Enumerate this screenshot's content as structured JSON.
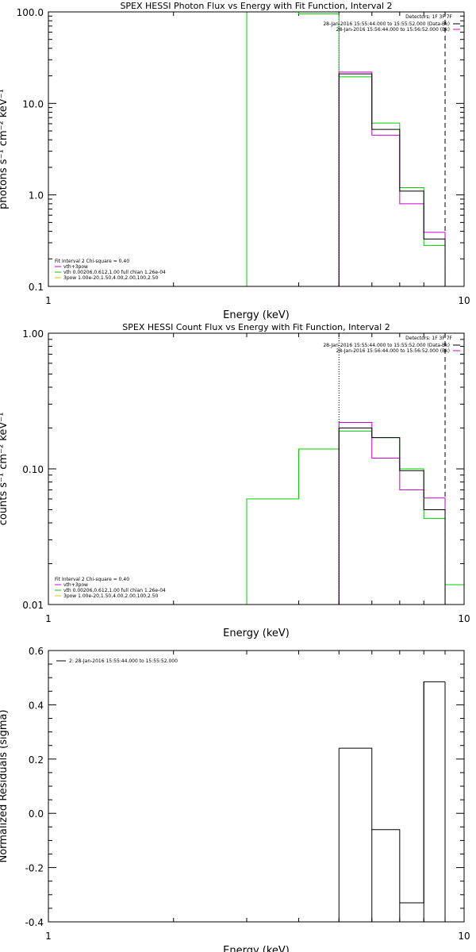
{
  "chart_data": [
    {
      "type": "line",
      "title": "SPEX HESSI Photon Flux vs Energy with Fit Function, Interval 2",
      "xlabel": "Energy (keV)",
      "ylabel": "photons s⁻¹ cm⁻² keV⁻¹",
      "xscale": "log",
      "yscale": "log",
      "xlim": [
        1,
        10
      ],
      "ylim": [
        0.1,
        100
      ],
      "x_ticks": [
        {
          "v": 1,
          "label": "1"
        },
        {
          "v": 10,
          "label": "10"
        }
      ],
      "y_ticks": [
        {
          "v": 0.1,
          "label": "0.1"
        },
        {
          "v": 1,
          "label": "1.0"
        },
        {
          "v": 10,
          "label": "10.0"
        },
        {
          "v": 100,
          "label": "100.0"
        }
      ],
      "detectors_label": "Detectors: 1F 3F 7F",
      "time_lines": [
        {
          "text": "28-Jan-2016 15:55:44.000 to 15:55:52.000 (Data-Bk)",
          "color": "#000000"
        },
        {
          "text": "28-Jan-2016 15:56:44.000 to 15:56:52.000 (Bk)",
          "color": "#cc00cc"
        }
      ],
      "fit_info": {
        "header": "Fit Interval 2   Chi-square = 0.40",
        "lines": [
          {
            "text": "vth+3pow",
            "color": "#cc00cc"
          },
          {
            "text": "vth 0.00206,0.612,1.00   full chian 1.26e-04",
            "color": "#00cc00"
          },
          {
            "text": "3pow 1.00e-20,1.50,4.00,2.00,100,2.50",
            "color": "#c8c800"
          }
        ]
      },
      "vlines": [
        {
          "x": 5.0,
          "style": "dotted"
        },
        {
          "x": 9.0,
          "style": "dashed"
        }
      ],
      "series": [
        {
          "color": "#00cc00",
          "edges": [
            3.0,
            4.0,
            5.0,
            6.0,
            7.0,
            8.0,
            9.0
          ],
          "values": [
            100,
            95,
            19.5,
            6.1,
            1.2,
            0.28
          ]
        },
        {
          "color": "#cc00cc",
          "edges": [
            5.0,
            6.0,
            7.0,
            8.0,
            9.0
          ],
          "values": [
            22,
            4.5,
            0.8,
            0.39
          ]
        },
        {
          "color": "#000000",
          "edges": [
            5.0,
            6.0,
            7.0,
            8.0,
            9.0
          ],
          "values": [
            21,
            5.2,
            1.1,
            0.33
          ]
        }
      ]
    },
    {
      "type": "line",
      "title": "SPEX HESSI Count Flux vs Energy with Fit Function, Interval 2",
      "xlabel": "Energy (keV)",
      "ylabel": "counts s⁻¹ cm⁻² keV⁻¹",
      "xscale": "log",
      "yscale": "log",
      "xlim": [
        1,
        10
      ],
      "ylim": [
        0.01,
        1
      ],
      "x_ticks": [
        {
          "v": 1,
          "label": "1"
        },
        {
          "v": 10,
          "label": "10"
        }
      ],
      "y_ticks": [
        {
          "v": 0.01,
          "label": "0.01"
        },
        {
          "v": 0.1,
          "label": "0.10"
        },
        {
          "v": 1,
          "label": "1.00"
        }
      ],
      "detectors_label": "Detectors: 1F 3F 7F",
      "time_lines": [
        {
          "text": "28-Jan-2016 15:55:44.000 to 15:55:52.000 (Data-Bk)",
          "color": "#000000"
        },
        {
          "text": "28-Jan-2016 15:56:44.000 to 15:56:52.000 (Bk)",
          "color": "#cc00cc"
        }
      ],
      "fit_info": {
        "header": "Fit Interval 2   Chi-square = 0.40",
        "lines": [
          {
            "text": "vth+3pow",
            "color": "#cc00cc"
          },
          {
            "text": "vth 0.00206,0.612,1.00   full chian 1.26e-04",
            "color": "#00cc00"
          },
          {
            "text": "3pow 1.00e-20,1.50,4.00,2.00,100,2.50",
            "color": "#c8c800"
          }
        ]
      },
      "vlines": [
        {
          "x": 5.0,
          "style": "dotted"
        },
        {
          "x": 9.0,
          "style": "dashed"
        }
      ],
      "series": [
        {
          "color": "#00cc00",
          "edges": [
            3.0,
            4.0,
            5.0,
            6.0,
            7.0,
            8.0,
            9.0,
            10.0
          ],
          "values": [
            0.06,
            0.14,
            0.19,
            0.17,
            0.1,
            0.043,
            0.014
          ]
        },
        {
          "color": "#cc00cc",
          "edges": [
            5.0,
            6.0,
            7.0,
            8.0,
            9.0
          ],
          "values": [
            0.22,
            0.12,
            0.07,
            0.061
          ]
        },
        {
          "color": "#000000",
          "edges": [
            5.0,
            6.0,
            7.0,
            8.0,
            9.0
          ],
          "values": [
            0.2,
            0.17,
            0.097,
            0.05
          ]
        }
      ]
    },
    {
      "type": "line",
      "title": "",
      "xlabel": "Energy (keV)",
      "ylabel": "Normalized Residuals (sigma)",
      "xscale": "log",
      "yscale": "linear",
      "xlim": [
        1,
        10
      ],
      "ylim": [
        -0.4,
        0.6
      ],
      "x_ticks": [
        {
          "v": 1,
          "label": "1"
        },
        {
          "v": 10,
          "label": "10"
        }
      ],
      "y_ticks": [
        {
          "v": -0.4,
          "label": "-0.4"
        },
        {
          "v": -0.2,
          "label": "-0.2"
        },
        {
          "v": 0,
          "label": "0.0"
        },
        {
          "v": 0.2,
          "label": "0.2"
        },
        {
          "v": 0.4,
          "label": "0.4"
        },
        {
          "v": 0.6,
          "label": "0.6"
        }
      ],
      "legend": "2: 28-Jan-2016 15:55:44.000 to 15:55:52.000",
      "series": [
        {
          "color": "#000000",
          "edges": [
            5.0,
            6.0,
            7.0,
            8.0,
            9.0
          ],
          "values": [
            0.24,
            -0.06,
            -0.33,
            0.485
          ]
        }
      ]
    }
  ]
}
